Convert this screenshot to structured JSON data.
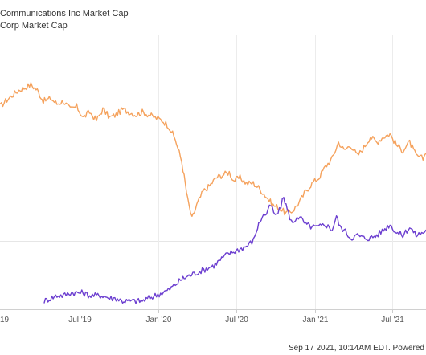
{
  "legend": {
    "items": [
      {
        "label": "Communications Inc Market Cap",
        "color": "#f5a25d"
      },
      {
        "label": "Corp Market Cap",
        "color": "#6c3fd0"
      }
    ]
  },
  "footer": {
    "text": "Sep 17 2021, 10:14AM EDT. Powered"
  },
  "chart_data": {
    "type": "line",
    "title": "",
    "xlabel": "",
    "ylabel": "",
    "x_tick_labels": [
      "19",
      "Jul '19",
      "Jan '20",
      "Jul '20",
      "Jan '21",
      "Jul '21"
    ],
    "x_tick_dates": [
      "2019-01-01",
      "2019-07-01",
      "2020-01-01",
      "2020-07-01",
      "2021-01-01",
      "2021-07-01"
    ],
    "xlim": [
      "2018-12-28",
      "2021-09-17"
    ],
    "y_gridlines": 4,
    "ylim": [
      0,
      100
    ],
    "grid": true,
    "legend_position": "top-left",
    "series": [
      {
        "name": "Communications Inc Market Cap",
        "color": "#f5a25d",
        "points": [
          [
            "2018-12-28",
            74
          ],
          [
            "2019-01-10",
            76
          ],
          [
            "2019-01-25",
            78
          ],
          [
            "2019-02-10",
            80
          ],
          [
            "2019-02-25",
            81
          ],
          [
            "2019-03-10",
            82
          ],
          [
            "2019-03-25",
            80
          ],
          [
            "2019-04-08",
            76
          ],
          [
            "2019-04-25",
            77
          ],
          [
            "2019-05-10",
            75
          ],
          [
            "2019-05-25",
            76
          ],
          [
            "2019-06-10",
            73
          ],
          [
            "2019-06-25",
            74
          ],
          [
            "2019-07-10",
            70
          ],
          [
            "2019-07-25",
            72
          ],
          [
            "2019-08-10",
            69
          ],
          [
            "2019-08-25",
            73
          ],
          [
            "2019-09-10",
            70
          ],
          [
            "2019-09-25",
            71
          ],
          [
            "2019-10-10",
            73
          ],
          [
            "2019-10-25",
            72
          ],
          [
            "2019-11-10",
            71
          ],
          [
            "2019-11-25",
            72
          ],
          [
            "2019-12-10",
            71
          ],
          [
            "2019-12-25",
            70
          ],
          [
            "2020-01-10",
            69
          ],
          [
            "2020-01-25",
            67
          ],
          [
            "2020-02-10",
            62
          ],
          [
            "2020-02-25",
            54
          ],
          [
            "2020-03-10",
            40
          ],
          [
            "2020-03-20",
            33
          ],
          [
            "2020-03-31",
            38
          ],
          [
            "2020-04-15",
            43
          ],
          [
            "2020-04-30",
            45
          ],
          [
            "2020-05-15",
            48
          ],
          [
            "2020-05-30",
            49
          ],
          [
            "2020-06-15",
            50
          ],
          [
            "2020-06-25",
            47
          ],
          [
            "2020-07-10",
            48
          ],
          [
            "2020-07-25",
            46
          ],
          [
            "2020-08-10",
            46
          ],
          [
            "2020-08-25",
            44
          ],
          [
            "2020-09-10",
            41
          ],
          [
            "2020-09-25",
            38
          ],
          [
            "2020-10-10",
            37
          ],
          [
            "2020-10-25",
            35
          ],
          [
            "2020-11-10",
            36
          ],
          [
            "2020-11-25",
            39
          ],
          [
            "2020-12-10",
            43
          ],
          [
            "2020-12-25",
            46
          ],
          [
            "2021-01-10",
            48
          ],
          [
            "2021-01-25",
            52
          ],
          [
            "2021-02-10",
            55
          ],
          [
            "2021-02-25",
            61
          ],
          [
            "2021-03-10",
            58
          ],
          [
            "2021-03-25",
            60
          ],
          [
            "2021-04-10",
            56
          ],
          [
            "2021-04-25",
            59
          ],
          [
            "2021-05-10",
            63
          ],
          [
            "2021-05-25",
            61
          ],
          [
            "2021-06-10",
            63
          ],
          [
            "2021-06-25",
            64
          ],
          [
            "2021-07-10",
            60
          ],
          [
            "2021-07-25",
            58
          ],
          [
            "2021-08-10",
            61
          ],
          [
            "2021-08-25",
            56
          ],
          [
            "2021-09-10",
            55
          ],
          [
            "2021-09-17",
            57
          ]
        ]
      },
      {
        "name": "Corp Market Cap",
        "color": "#6c3fd0",
        "points": [
          [
            "2019-04-10",
            3
          ],
          [
            "2019-04-25",
            4
          ],
          [
            "2019-05-10",
            5
          ],
          [
            "2019-05-25",
            5
          ],
          [
            "2019-06-10",
            6
          ],
          [
            "2019-06-25",
            6
          ],
          [
            "2019-07-10",
            6
          ],
          [
            "2019-07-25",
            5
          ],
          [
            "2019-08-10",
            5
          ],
          [
            "2019-08-25",
            5
          ],
          [
            "2019-09-10",
            4
          ],
          [
            "2019-09-25",
            4
          ],
          [
            "2019-10-10",
            3
          ],
          [
            "2019-10-25",
            3
          ],
          [
            "2019-11-10",
            3
          ],
          [
            "2019-11-25",
            3
          ],
          [
            "2019-12-10",
            4
          ],
          [
            "2019-12-25",
            5
          ],
          [
            "2020-01-10",
            6
          ],
          [
            "2020-01-25",
            7
          ],
          [
            "2020-02-10",
            9
          ],
          [
            "2020-02-25",
            11
          ],
          [
            "2020-03-10",
            12
          ],
          [
            "2020-03-25",
            13
          ],
          [
            "2020-04-10",
            14
          ],
          [
            "2020-04-25",
            15
          ],
          [
            "2020-05-10",
            16
          ],
          [
            "2020-05-25",
            18
          ],
          [
            "2020-06-10",
            20
          ],
          [
            "2020-06-25",
            21
          ],
          [
            "2020-07-10",
            22
          ],
          [
            "2020-07-25",
            23
          ],
          [
            "2020-08-10",
            25
          ],
          [
            "2020-08-20",
            30
          ],
          [
            "2020-08-31",
            34
          ],
          [
            "2020-09-10",
            35
          ],
          [
            "2020-09-20",
            38
          ],
          [
            "2020-09-30",
            34
          ],
          [
            "2020-10-10",
            36
          ],
          [
            "2020-10-20",
            41
          ],
          [
            "2020-10-31",
            35
          ],
          [
            "2020-11-10",
            31
          ],
          [
            "2020-11-20",
            34
          ],
          [
            "2020-11-30",
            33
          ],
          [
            "2020-12-10",
            31
          ],
          [
            "2020-12-25",
            30
          ],
          [
            "2021-01-10",
            30
          ],
          [
            "2021-01-25",
            31
          ],
          [
            "2021-02-10",
            29
          ],
          [
            "2021-02-20",
            34
          ],
          [
            "2021-02-28",
            30
          ],
          [
            "2021-03-10",
            29
          ],
          [
            "2021-03-25",
            26
          ],
          [
            "2021-04-10",
            27
          ],
          [
            "2021-04-25",
            26
          ],
          [
            "2021-05-10",
            26
          ],
          [
            "2021-05-25",
            27
          ],
          [
            "2021-06-10",
            29
          ],
          [
            "2021-06-25",
            31
          ],
          [
            "2021-07-10",
            28
          ],
          [
            "2021-07-25",
            27
          ],
          [
            "2021-08-10",
            30
          ],
          [
            "2021-08-25",
            27
          ],
          [
            "2021-09-10",
            28
          ],
          [
            "2021-09-17",
            29
          ]
        ]
      }
    ]
  }
}
